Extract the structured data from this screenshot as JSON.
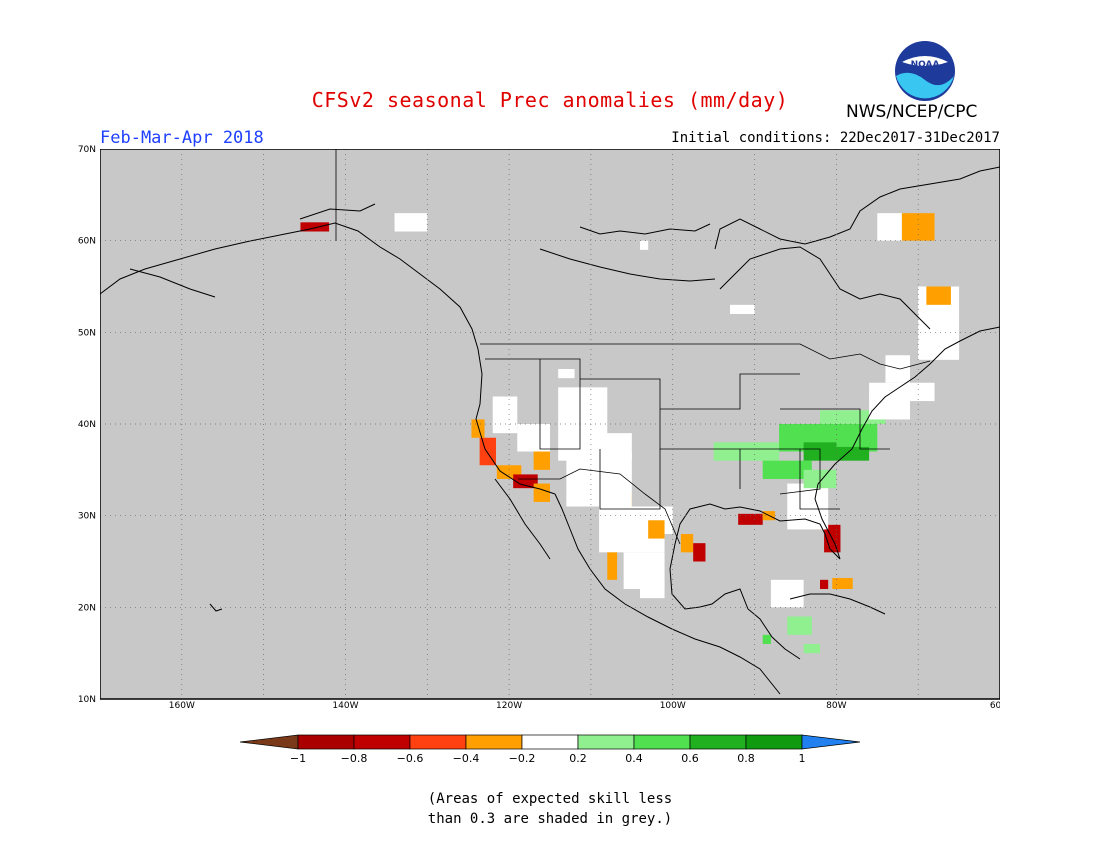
{
  "title": "CFSv2 seasonal Prec anomalies (mm/day)",
  "season": "Feb-Mar-Apr 2018",
  "initial_conditions": "Initial conditions: 22Dec2017-31Dec2017",
  "agency": "NWS/NCEP/CPC",
  "logo_text": "NOAA",
  "map": {
    "lon_range": [
      -170,
      -60
    ],
    "lat_range": [
      10,
      70
    ],
    "lat_labels": [
      "70N",
      "60N",
      "50N",
      "40N",
      "30N",
      "20N",
      "10N"
    ],
    "lon_labels": [
      "160W",
      "140W",
      "120W",
      "100W",
      "80W",
      "60W"
    ],
    "grid": "dotted",
    "background_color": "#c8c8c8",
    "regions": [
      {
        "lon": -145.5,
        "lat": 61,
        "w": 3.5,
        "h": 1,
        "cls": "-0.8"
      },
      {
        "lon": -134,
        "lat": 61,
        "w": 4,
        "h": 2,
        "cls": "0"
      },
      {
        "lon": -124.6,
        "lat": 38.5,
        "w": 1.6,
        "h": 2,
        "cls": "-0.4"
      },
      {
        "lon": -123.6,
        "lat": 35.5,
        "w": 2,
        "h": 3,
        "cls": "-0.6"
      },
      {
        "lon": -121.5,
        "lat": 34,
        "w": 3,
        "h": 1.5,
        "cls": "-0.4"
      },
      {
        "lon": -119.5,
        "lat": 33,
        "w": 3,
        "h": 1.5,
        "cls": "-0.8"
      },
      {
        "lon": -117,
        "lat": 31.5,
        "w": 2,
        "h": 2,
        "cls": "-0.4"
      },
      {
        "lon": -122,
        "lat": 39,
        "w": 3,
        "h": 4,
        "cls": "0"
      },
      {
        "lon": -119,
        "lat": 37,
        "w": 4,
        "h": 3,
        "cls": "0"
      },
      {
        "lon": -117,
        "lat": 35,
        "w": 2,
        "h": 2,
        "cls": "-0.4"
      },
      {
        "lon": -114,
        "lat": 36,
        "w": 6,
        "h": 8,
        "cls": "0"
      },
      {
        "lon": -109,
        "lat": 36,
        "w": 4,
        "h": 3,
        "cls": "0"
      },
      {
        "lon": -108,
        "lat": 31.5,
        "w": 3,
        "h": 1,
        "cls": "-0.4"
      },
      {
        "lon": -106,
        "lat": 30.5,
        "w": 1,
        "h": 1.5,
        "cls": "-0.4"
      },
      {
        "lon": -113,
        "lat": 31,
        "w": 8,
        "h": 6,
        "cls": "0"
      },
      {
        "lon": -109,
        "lat": 26,
        "w": 8,
        "h": 5,
        "cls": "0"
      },
      {
        "lon": -103,
        "lat": 28,
        "w": 3,
        "h": 3,
        "cls": "0"
      },
      {
        "lon": -106,
        "lat": 22,
        "w": 5,
        "h": 4,
        "cls": "0"
      },
      {
        "lon": -104,
        "lat": 21,
        "w": 3,
        "h": 2,
        "cls": "0"
      },
      {
        "lon": -108,
        "lat": 23,
        "w": 1.2,
        "h": 3,
        "cls": "-0.4"
      },
      {
        "lon": -103,
        "lat": 27.5,
        "w": 2,
        "h": 2,
        "cls": "-0.4"
      },
      {
        "lon": -99,
        "lat": 26,
        "w": 1.5,
        "h": 2,
        "cls": "-0.4"
      },
      {
        "lon": -97.5,
        "lat": 25,
        "w": 1.5,
        "h": 2,
        "cls": "-0.8"
      },
      {
        "lon": -92,
        "lat": 29,
        "w": 3,
        "h": 1.2,
        "cls": "-0.8"
      },
      {
        "lon": -89,
        "lat": 29.5,
        "w": 1.5,
        "h": 1,
        "cls": "-0.4"
      },
      {
        "lon": -81.5,
        "lat": 26,
        "w": 2,
        "h": 3,
        "cls": "-0.8"
      },
      {
        "lon": -82.5,
        "lat": 28.5,
        "w": 1,
        "h": 1.5,
        "cls": "-0.4"
      },
      {
        "lon": -86,
        "lat": 28.5,
        "w": 5,
        "h": 5,
        "cls": "0"
      },
      {
        "lon": -80.5,
        "lat": 22,
        "w": 2.5,
        "h": 1.2,
        "cls": "-0.4"
      },
      {
        "lon": -82,
        "lat": 22,
        "w": 1,
        "h": 1,
        "cls": "-0.8"
      },
      {
        "lon": -95,
        "lat": 36,
        "w": 8,
        "h": 2,
        "cls": "0.4"
      },
      {
        "lon": -87,
        "lat": 37,
        "w": 12,
        "h": 3,
        "cls": "0.6"
      },
      {
        "lon": -84,
        "lat": 36,
        "w": 8,
        "h": 2,
        "cls": "0.8"
      },
      {
        "lon": -89,
        "lat": 34,
        "w": 6,
        "h": 2,
        "cls": "0.6"
      },
      {
        "lon": -84,
        "lat": 33,
        "w": 4,
        "h": 2,
        "cls": "0.4"
      },
      {
        "lon": -80,
        "lat": 37.5,
        "w": 4,
        "h": 3,
        "cls": "0.6"
      },
      {
        "lon": -82,
        "lat": 40,
        "w": 8,
        "h": 1.5,
        "cls": "0.4"
      },
      {
        "lon": -76,
        "lat": 40.5,
        "w": 5,
        "h": 2.5,
        "cls": "0"
      },
      {
        "lon": -76,
        "lat": 42.5,
        "w": 8,
        "h": 2,
        "cls": "0"
      },
      {
        "lon": -74,
        "lat": 44.5,
        "w": 3,
        "h": 3,
        "cls": "0"
      },
      {
        "lon": -70,
        "lat": 47,
        "w": 5,
        "h": 8,
        "cls": "0"
      },
      {
        "lon": -69,
        "lat": 53,
        "w": 3,
        "h": 2,
        "cls": "-0.4"
      },
      {
        "lon": -72,
        "lat": 60,
        "w": 4,
        "h": 3,
        "cls": "-0.4"
      },
      {
        "lon": -75,
        "lat": 60,
        "w": 3,
        "h": 3,
        "cls": "0"
      },
      {
        "lon": -88,
        "lat": 20,
        "w": 4,
        "h": 3,
        "cls": "0"
      },
      {
        "lon": -86,
        "lat": 17,
        "w": 3,
        "h": 2,
        "cls": "0.4"
      },
      {
        "lon": -84,
        "lat": 15,
        "w": 2,
        "h": 1,
        "cls": "0.4"
      },
      {
        "lon": -89,
        "lat": 16,
        "w": 1,
        "h": 1,
        "cls": "0.6"
      },
      {
        "lon": -93,
        "lat": 52,
        "w": 3,
        "h": 1,
        "cls": "0"
      },
      {
        "lon": -114,
        "lat": 45,
        "w": 2,
        "h": 1,
        "cls": "0"
      },
      {
        "lon": -104,
        "lat": 59,
        "w": 1,
        "h": 1,
        "cls": "0"
      }
    ]
  },
  "colorbar": {
    "classes": [
      {
        "key": "<-1",
        "color": "#7a3a1a"
      },
      {
        "key": "-0.8",
        "color": "#c00000"
      },
      {
        "key": "-0.6",
        "color": "#ff4010"
      },
      {
        "key": "-0.4",
        "color": "#ffa000"
      },
      {
        "key": "0",
        "color": "#ffffff"
      },
      {
        "key": "0.4",
        "color": "#90f090"
      },
      {
        "key": "0.6",
        "color": "#50e050"
      },
      {
        "key": "0.8",
        "color": "#20b020"
      },
      {
        "key": "1",
        "color": "#109a10"
      },
      {
        "key": ">1",
        "color": "#2080f0"
      }
    ],
    "boxes": [
      "-0.8",
      "-0.6",
      "-0.4",
      "-0.2",
      "0",
      "0.4",
      "0.6",
      "0.8",
      "1"
    ],
    "labels": [
      "−1",
      "−0.8",
      "−0.6",
      "−0.4",
      "−0.2",
      "0.2",
      "0.4",
      "0.6",
      "0.8",
      "1"
    ]
  },
  "note_line1": "(Areas of expected skill less",
  "note_line2": "than 0.3 are shaded in grey.)"
}
